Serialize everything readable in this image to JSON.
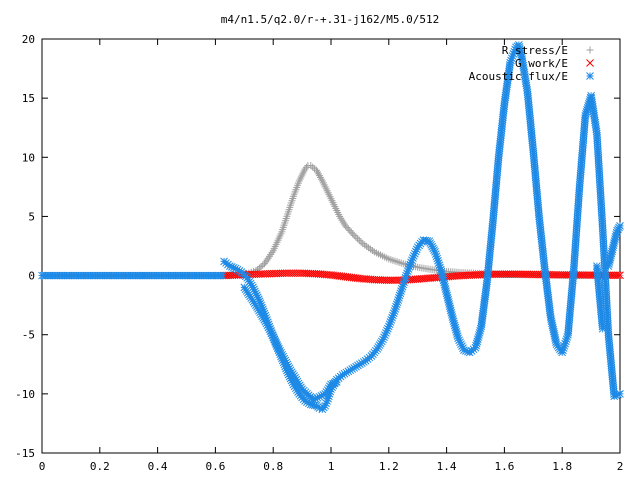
{
  "chart_data": {
    "type": "scatter",
    "title": "m4/n1.5/q2.0/r-+.31-j162/M5.0/512",
    "xlim": [
      0,
      2
    ],
    "ylim": [
      -15,
      20
    ],
    "xticks": [
      "0",
      "0.2",
      "0.4",
      "0.6",
      "0.8",
      "1",
      "1.2",
      "1.4",
      "1.6",
      "1.8",
      "2"
    ],
    "yticks": [
      "-15",
      "-10",
      "-5",
      "0",
      "5",
      "10",
      "15",
      "20"
    ],
    "grid": false,
    "legend_position": "top-right",
    "series": [
      {
        "name": "R stress/E",
        "marker": "+",
        "color": "#a0a0a0",
        "points": [
          [
            0.63,
            0.0
          ],
          [
            0.66,
            0.02
          ],
          [
            0.7,
            0.1
          ],
          [
            0.74,
            0.4
          ],
          [
            0.77,
            1.0
          ],
          [
            0.8,
            2.1
          ],
          [
            0.83,
            3.7
          ],
          [
            0.85,
            5.2
          ],
          [
            0.87,
            6.7
          ],
          [
            0.89,
            8.0
          ],
          [
            0.91,
            9.0
          ],
          [
            0.92,
            9.3
          ],
          [
            0.93,
            9.3
          ],
          [
            0.95,
            8.9
          ],
          [
            0.97,
            8.0
          ],
          [
            0.99,
            7.0
          ],
          [
            1.01,
            6.0
          ],
          [
            1.03,
            5.0
          ],
          [
            1.05,
            4.2
          ],
          [
            1.08,
            3.4
          ],
          [
            1.11,
            2.7
          ],
          [
            1.15,
            2.0
          ],
          [
            1.2,
            1.4
          ],
          [
            1.25,
            1.0
          ],
          [
            1.3,
            0.7
          ],
          [
            1.35,
            0.5
          ],
          [
            1.4,
            0.35
          ],
          [
            1.45,
            0.25
          ],
          [
            1.5,
            0.2
          ],
          [
            1.55,
            0.15
          ],
          [
            1.6,
            0.1
          ],
          [
            1.65,
            0.08
          ],
          [
            1.7,
            0.06
          ],
          [
            1.75,
            0.05
          ],
          [
            1.8,
            0.04
          ],
          [
            1.85,
            0.03
          ],
          [
            1.9,
            0.03
          ],
          [
            1.95,
            0.02
          ],
          [
            2.0,
            0.02
          ]
        ]
      },
      {
        "name": "G work/E",
        "marker": "x",
        "color": "#ff0000",
        "points": [
          [
            0.63,
            0.0
          ],
          [
            0.68,
            0.05
          ],
          [
            0.72,
            0.1
          ],
          [
            0.78,
            0.15
          ],
          [
            0.84,
            0.2
          ],
          [
            0.9,
            0.2
          ],
          [
            0.95,
            0.15
          ],
          [
            1.0,
            0.05
          ],
          [
            1.05,
            -0.1
          ],
          [
            1.1,
            -0.25
          ],
          [
            1.15,
            -0.35
          ],
          [
            1.2,
            -0.4
          ],
          [
            1.25,
            -0.38
          ],
          [
            1.3,
            -0.3
          ],
          [
            1.35,
            -0.2
          ],
          [
            1.4,
            -0.1
          ],
          [
            1.45,
            0.0
          ],
          [
            1.5,
            0.05
          ],
          [
            1.55,
            0.1
          ],
          [
            1.6,
            0.12
          ],
          [
            1.65,
            0.12
          ],
          [
            1.7,
            0.1
          ],
          [
            1.75,
            0.08
          ],
          [
            1.8,
            0.06
          ],
          [
            1.85,
            0.05
          ],
          [
            1.9,
            0.04
          ],
          [
            1.95,
            0.03
          ],
          [
            2.0,
            0.03
          ]
        ]
      },
      {
        "name": "Acoustic flux/E",
        "marker": "*",
        "color": "#1e8ae6",
        "points": [
          [
            0.63,
            1.2
          ],
          [
            0.65,
            0.8
          ],
          [
            0.67,
            0.6
          ],
          [
            0.69,
            0.3
          ],
          [
            0.71,
            -0.2
          ],
          [
            0.73,
            -1.0
          ],
          [
            0.75,
            -2.0
          ],
          [
            0.77,
            -3.2
          ],
          [
            0.79,
            -4.5
          ],
          [
            0.81,
            -5.8
          ],
          [
            0.83,
            -7.0
          ],
          [
            0.85,
            -8.2
          ],
          [
            0.87,
            -9.2
          ],
          [
            0.89,
            -10.0
          ],
          [
            0.91,
            -10.6
          ],
          [
            0.93,
            -10.9
          ],
          [
            0.95,
            -11.0
          ],
          [
            0.96,
            -11.2
          ],
          [
            0.97,
            -11.3
          ],
          [
            0.98,
            -11.0
          ],
          [
            0.99,
            -10.4
          ],
          [
            1.0,
            -9.6
          ],
          [
            1.02,
            -8.8
          ],
          [
            1.04,
            -8.4
          ],
          [
            1.06,
            -8.1
          ],
          [
            1.08,
            -7.8
          ],
          [
            1.1,
            -7.5
          ],
          [
            1.12,
            -7.2
          ],
          [
            1.14,
            -6.8
          ],
          [
            1.16,
            -6.2
          ],
          [
            1.18,
            -5.4
          ],
          [
            1.2,
            -4.3
          ],
          [
            1.22,
            -3.0
          ],
          [
            1.24,
            -1.5
          ],
          [
            1.26,
            0.0
          ],
          [
            1.28,
            1.3
          ],
          [
            1.3,
            2.4
          ],
          [
            1.32,
            3.0
          ],
          [
            1.34,
            2.9
          ],
          [
            1.36,
            2.0
          ],
          [
            1.38,
            0.5
          ],
          [
            1.4,
            -1.5
          ],
          [
            1.42,
            -3.5
          ],
          [
            1.44,
            -5.3
          ],
          [
            1.46,
            -6.3
          ],
          [
            1.48,
            -6.5
          ],
          [
            1.5,
            -6.1
          ],
          [
            1.52,
            -4.3
          ],
          [
            1.54,
            -0.5
          ],
          [
            1.56,
            4.5
          ],
          [
            1.58,
            10.0
          ],
          [
            1.6,
            14.5
          ],
          [
            1.62,
            18.0
          ],
          [
            1.64,
            19.3
          ],
          [
            1.65,
            19.5
          ],
          [
            1.66,
            18.5
          ],
          [
            1.68,
            15.5
          ],
          [
            1.7,
            10.5
          ],
          [
            1.72,
            5.0
          ],
          [
            1.74,
            0.5
          ],
          [
            1.76,
            -3.5
          ],
          [
            1.78,
            -5.8
          ],
          [
            1.8,
            -6.5
          ],
          [
            1.82,
            -5.0
          ],
          [
            1.84,
            0.5
          ],
          [
            1.86,
            7.5
          ],
          [
            1.88,
            13.5
          ],
          [
            1.9,
            15.2
          ],
          [
            1.92,
            12.0
          ],
          [
            1.94,
            4.0
          ],
          [
            1.96,
            -5.0
          ],
          [
            1.98,
            -10.2
          ],
          [
            2.0,
            -10.0
          ],
          [
            0.35,
            0.0
          ],
          [
            0.7,
            -1.0
          ],
          [
            0.74,
            -2.5
          ],
          [
            0.78,
            -4.2
          ],
          [
            0.82,
            -6.2
          ],
          [
            0.86,
            -8.0
          ],
          [
            0.9,
            -9.6
          ],
          [
            0.94,
            -10.5
          ],
          [
            0.98,
            -10.0
          ],
          [
            1.0,
            -9.2
          ],
          [
            1.02,
            -9.0
          ],
          [
            1.96,
            0.8
          ],
          [
            1.99,
            3.8
          ],
          [
            2.0,
            4.2
          ],
          [
            1.92,
            0.8
          ],
          [
            1.94,
            -4.5
          ]
        ]
      }
    ]
  }
}
